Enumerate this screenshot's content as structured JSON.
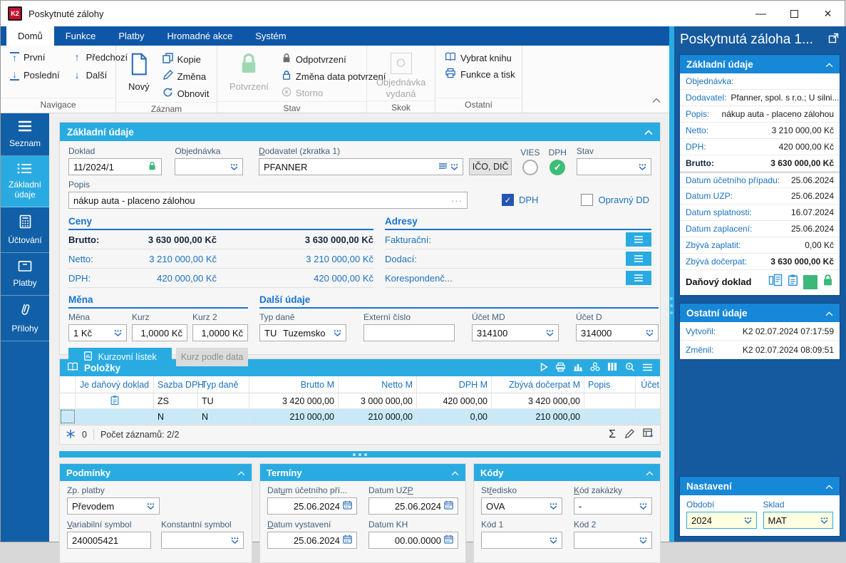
{
  "colors": {
    "accent_cyan": "#29ABE2",
    "ribbon_blue": "#0E57A8",
    "right_panel_blue": "#15599F",
    "card_header_blue": "#1787D7",
    "link_blue": "#1B72C0",
    "green": "#3CB878"
  },
  "window": {
    "title": "Poskytnuté zálohy",
    "logo": "K2"
  },
  "tabs": {
    "domu": "Domů",
    "funkce": "Funkce",
    "platby": "Platby",
    "hromadne": "Hromadné akce",
    "system": "Systém"
  },
  "ribbon": {
    "navigace": {
      "label": "Navigace",
      "prvni": "První",
      "posledni": "Poslední",
      "predchozi": "Předchozí",
      "dalsi": "Další"
    },
    "zaznam": {
      "label": "Záznam",
      "novy": "Nový",
      "kopie": "Kopie",
      "zmena": "Změna",
      "obnovit": "Obnovit"
    },
    "stav": {
      "label": "Stav",
      "potvrzeni": "Potvrzení",
      "odpotvrzeni": "Odpotvrzení",
      "zmena_data": "Změna data potvrzení",
      "storno": "Storno"
    },
    "skok": {
      "label": "Skok",
      "objednavka_l1": "Objednávka",
      "objednavka_l2": "vydaná"
    },
    "ostatni": {
      "label": "Ostatní",
      "vybrat_knihu": "Vybrat knihu",
      "funkce_a_tisk": "Funkce a tisk"
    }
  },
  "sidebar": {
    "seznam": "Seznam",
    "zakladni_l1": "Základní",
    "zakladni_l2": "údaje",
    "uctovani": "Účtování",
    "platby": "Platby",
    "prilohy": "Přílohy"
  },
  "main": {
    "zakladni": {
      "title": "Základní údaje",
      "doklad_label": "Doklad",
      "doklad": "11/2024/1",
      "objednavka_label": "Objednávka",
      "objednavka": "",
      "dodavatel_label_html": "<u>D</u>odavatel (zkratka 1)",
      "dodavatel": "PFANNER",
      "ico_dic": "IČO, DIČ",
      "vies_label": "VIES",
      "dph_label": "DPH",
      "stav_label": "Stav",
      "stav": "",
      "popis_label": "Popis",
      "popis": "nákup auta - placeno zálohou",
      "chk_dph": "DPH",
      "chk_opravny": "Opravný DD",
      "ceny": {
        "title": "Ceny",
        "rows": [
          {
            "label": "Brutto:",
            "v1": "3 630 000,00 Kč",
            "v2": "3 630 000,00 Kč"
          },
          {
            "label": "Netto:",
            "v1": "3 210 000,00 Kč",
            "v2": "3 210 000,00 Kč"
          },
          {
            "label": "DPH:",
            "v1": "420 000,00 Kč",
            "v2": "420 000,00 Kč"
          }
        ]
      },
      "adresy": {
        "title": "Adresy",
        "rows": [
          {
            "label": "Fakturační:"
          },
          {
            "label": "Dodací:"
          },
          {
            "label": "Korespondenč..."
          }
        ]
      },
      "mena": {
        "title": "Měna",
        "mena_label": "Měna",
        "mena": "1 Kč",
        "kurz_label": "Kurz",
        "kurz": "1,0000 Kč",
        "kurz2_label": "Kurz 2",
        "kurz2": "1,0000 Kč",
        "btn_kurzovni": "Kurzovní lístek",
        "btn_kurz_podle": "Kurz podle data"
      },
      "dalsi": {
        "title": "Další údaje",
        "typ_dane_label": "Typ daně",
        "typ_dane_kod": "TU",
        "typ_dane": "Tuzemsko",
        "externi_label": "Externí číslo",
        "externi": "",
        "ucet_md_label": "Účet MD",
        "ucet_md": "314100",
        "ucet_d_label": "Účet D",
        "ucet_d": "314000"
      }
    },
    "polozky": {
      "title": "Položky",
      "columns": [
        "Je daňový doklad",
        "Sazba DPH",
        "Typ daně",
        "Brutto M",
        "Netto M",
        "DPH M",
        "Zbývá dočerpat M",
        "Popis",
        "Účet"
      ],
      "rows": [
        {
          "sazba": "ZS",
          "typ": "TU",
          "brutto": "3 420 000,00",
          "netto": "3 000 000,00",
          "dph": "420 000,00",
          "zbyva": "3 420 000,00",
          "popis": "",
          "ucet": ""
        },
        {
          "sazba": "N",
          "typ": "N",
          "brutto": "210 000,00",
          "netto": "210 000,00",
          "dph": "0,00",
          "zbyva": "210 000,00",
          "popis": "",
          "ucet": ""
        }
      ],
      "footer": {
        "count_badge": "0",
        "records": "Počet záznamů: 2/2"
      }
    },
    "podminky": {
      "title": "Podmínky",
      "zp_platby_label": "Zp. platby",
      "zp_platby": "Převodem",
      "var_sym_label_html": "<u>V</u>ariabilní symbol",
      "var_sym": "240005421",
      "konst_sym_label": "Konstantní symbol",
      "konst_sym": ""
    },
    "terminy": {
      "title": "Termíny",
      "d1_label_html": "Dat<u>u</u>m účetního pří...",
      "d1": "25.06.2024",
      "d2_label_html": "Datum UZ<u>P</u>",
      "d2": "25.06.2024",
      "d3_label_html": "<u>D</u>atum vystavení",
      "d3": "25.06.2024",
      "d4_label": "Datum KH",
      "d4": "00.00.0000"
    },
    "kody": {
      "title": "Kódy",
      "stredisko_label_html": "St<u>ř</u>edisko",
      "stredisko": "OVA",
      "zakazka_label_html": "<u>K</u>ód zakázky",
      "zakazka": "-",
      "kod1_label": "Kód 1",
      "kod1": "",
      "kod2_label": "Kód 2",
      "kod2": ""
    }
  },
  "right": {
    "title": "Poskytnutá záloha 1...",
    "zakladni": {
      "title": "Základní údaje",
      "rows": [
        {
          "label": "Objednávka:",
          "value": ""
        },
        {
          "label": "Dodavatel:",
          "value": "Pfanner, spol. s r.o.; U silni..."
        },
        {
          "label": "Popis:",
          "value": "nákup auta - placeno zálohou"
        },
        {
          "label": "Netto:",
          "value": "3 210 000,00 Kč"
        },
        {
          "label": "DPH:",
          "value": "420 000,00 Kč"
        },
        {
          "label": "Brutto:",
          "value": "3 630 000,00 Kč"
        },
        {
          "label": "Datum účetního případu:",
          "value": "25.06.2024"
        },
        {
          "label": "Datum UZP:",
          "value": "25.06.2024"
        },
        {
          "label": "Datum splatnosti:",
          "value": "16.07.2024"
        },
        {
          "label": "Datum zaplacení:",
          "value": "25.06.2024"
        },
        {
          "label": "Zbývá zaplatit:",
          "value": "0,00 Kč"
        },
        {
          "label": "Zbývá dočerpat:",
          "value": "3 630 000,00 Kč"
        }
      ],
      "danovy_doklad": "Daňový doklad"
    },
    "ostatni": {
      "title": "Ostatní údaje",
      "vytvoril_label": "Vytvořil:",
      "vytvoril": "K2 02.07.2024 07:17:59",
      "zmenil_label": "Změnil:",
      "zmenil": "K2 02.07.2024 08:09:51"
    },
    "nastaveni": {
      "title": "Nastavení",
      "obdobi_label": "Období",
      "obdobi": "2024",
      "sklad_label": "Sklad",
      "sklad": "MAT"
    }
  }
}
